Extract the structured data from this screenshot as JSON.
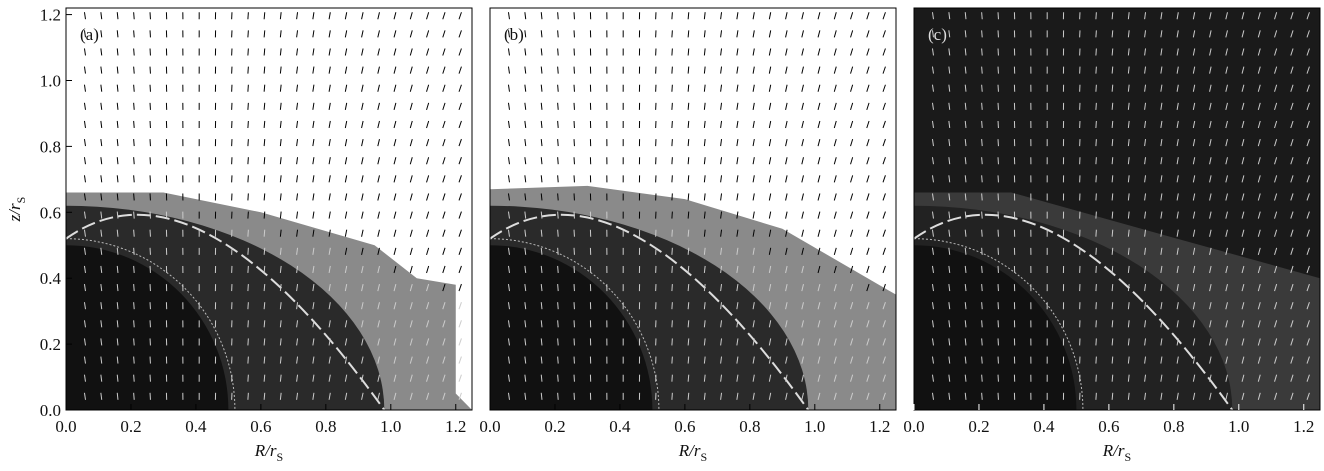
{
  "chart_data": [
    {
      "type": "vector",
      "panel_label": "(a)",
      "x_label": "R/r",
      "x_label_sub": "S",
      "y_label": "z/r",
      "y_label_sub": "S",
      "xlim": [
        0,
        1.25
      ],
      "ylim": [
        0,
        1.22
      ],
      "xticks": [
        {
          "value": 0,
          "label": "0.0"
        },
        0.2,
        0.4,
        0.6,
        0.8,
        {
          "value": 1,
          "label": "1.0"
        },
        1.2
      ],
      "yticks": [
        {
          "value": 0,
          "label": "0.0"
        },
        0.2,
        0.4,
        0.6,
        0.8,
        {
          "value": 1,
          "label": "1.0"
        },
        1.2
      ]
    },
    {
      "type": "vector",
      "panel_label": "(b)",
      "x_label": "R/r",
      "x_label_sub": "S",
      "xlim": [
        0,
        1.25
      ],
      "ylim": [
        0,
        1.22
      ],
      "xticks": [
        {
          "value": 0,
          "label": "0.0"
        },
        0.2,
        0.4,
        0.6,
        0.8,
        {
          "value": 1,
          "label": "1.0"
        },
        1.2
      ]
    },
    {
      "type": "vector",
      "panel_label": "(c)",
      "x_label": "R/r",
      "x_label_sub": "S",
      "xlim": [
        0,
        1.25
      ],
      "ylim": [
        0,
        1.22
      ],
      "xticks": [
        {
          "value": 0,
          "label": "0.0"
        },
        0.2,
        0.4,
        0.6,
        0.8,
        {
          "value": 1,
          "label": "1.0"
        },
        1.2
      ]
    }
  ]
}
